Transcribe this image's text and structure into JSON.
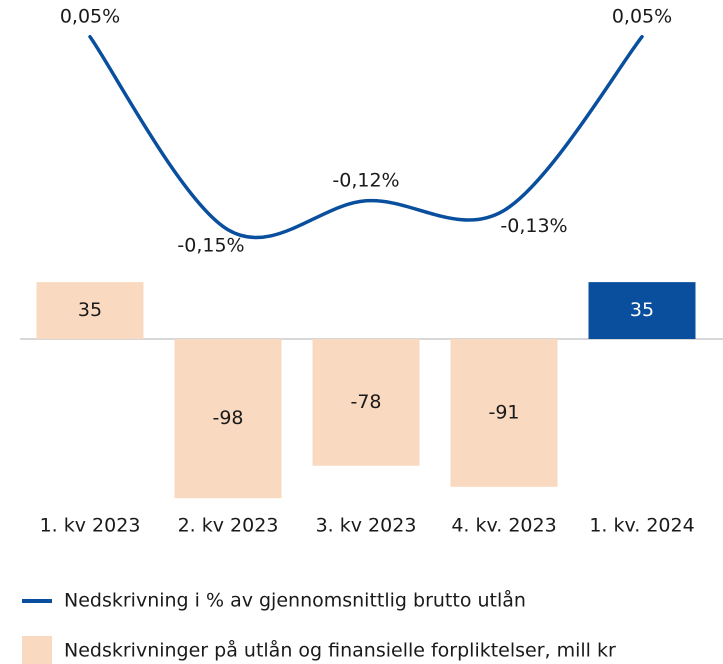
{
  "chart_data": {
    "type": "bar+line",
    "categories": [
      "1. kv 2023",
      "2. kv 2023",
      "3. kv 2023",
      "4. kv. 2023",
      "1. kv. 2024"
    ],
    "series": [
      {
        "name": "Nedskrivning i % av gjennomsnittlig brutto utlån",
        "type": "line",
        "color": "#0a4f9e",
        "values": [
          0.05,
          -0.15,
          -0.12,
          -0.13,
          0.05
        ],
        "value_labels": [
          "0,05%",
          "-0,15%",
          "-0,12%",
          "-0,13%",
          "0,05%"
        ]
      },
      {
        "name": "Nedskrivninger på utlån og finansielle forpliktelser, mill kr",
        "type": "bar",
        "color": "#f9d9bf",
        "colors": [
          "#f9d9bf",
          "#f9d9bf",
          "#f9d9bf",
          "#f9d9bf",
          "#0a4f9e"
        ],
        "values": [
          35,
          -98,
          -78,
          -91,
          35
        ]
      }
    ]
  }
}
